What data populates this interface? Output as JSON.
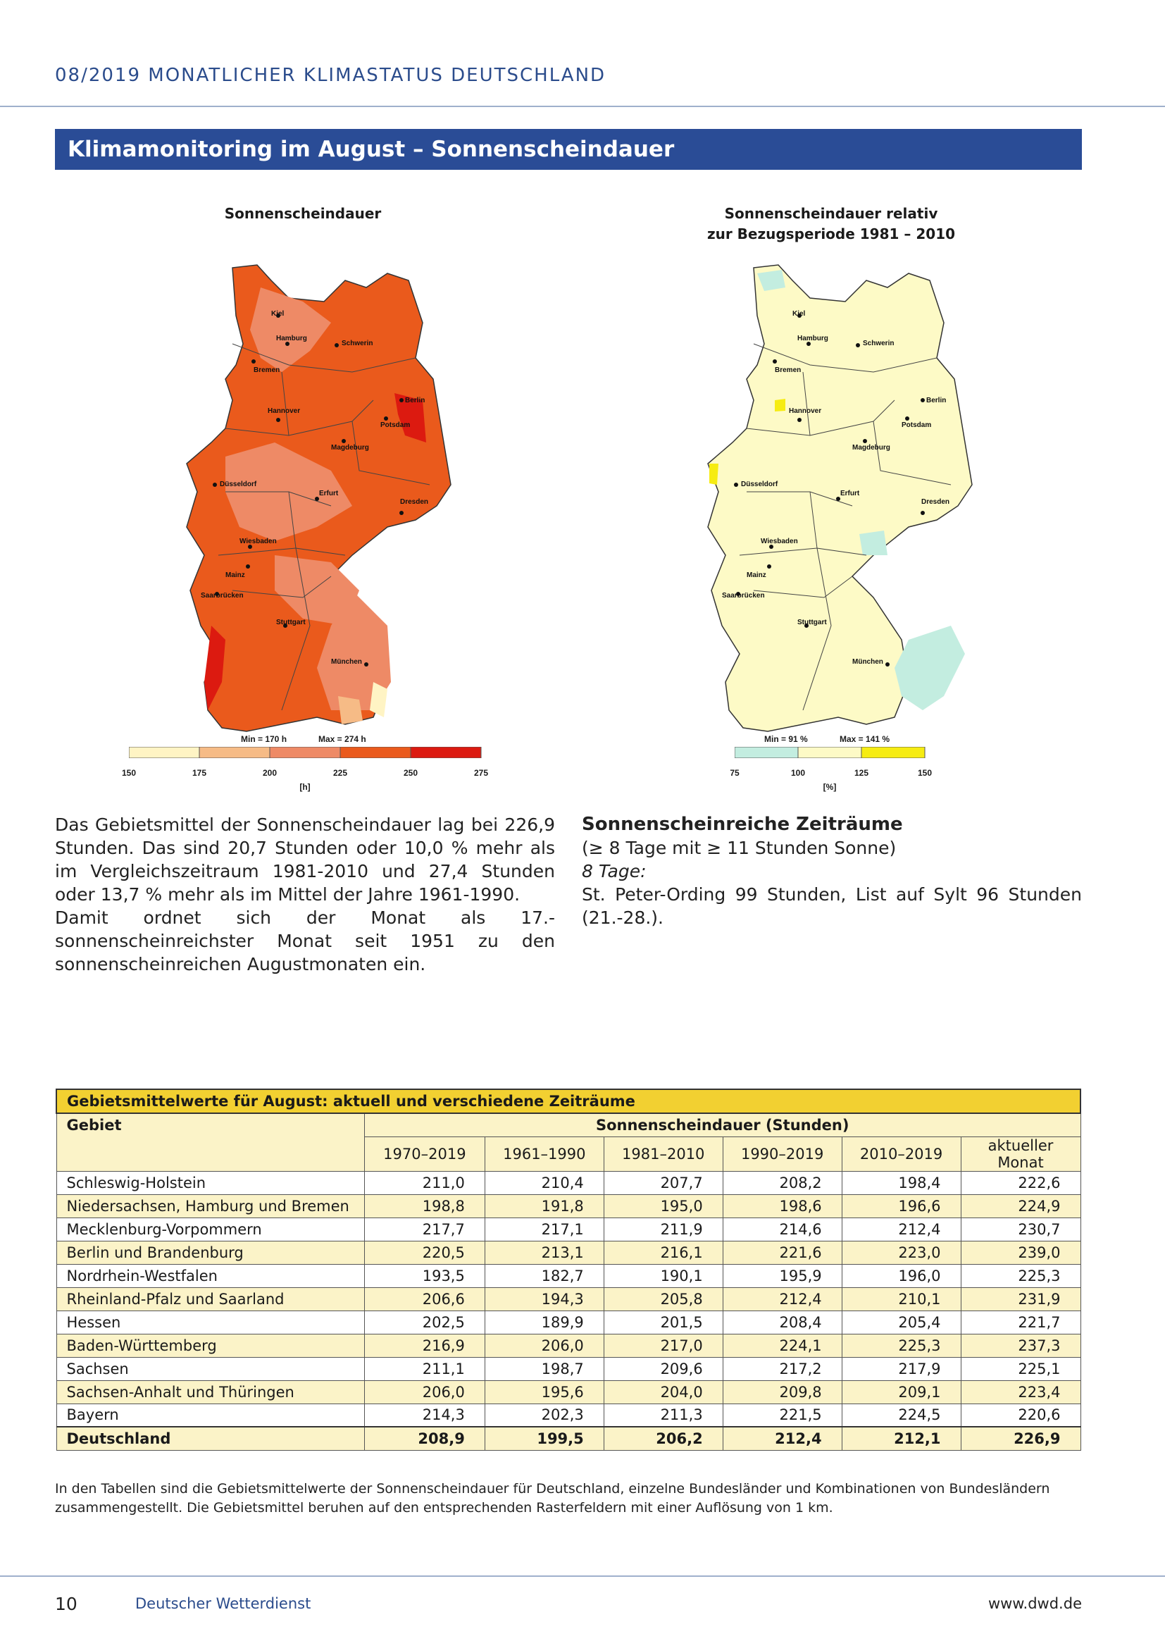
{
  "header": {
    "title": "08/2019  MONATLICHER KLIMASTATUS DEUTSCHLAND"
  },
  "banner": {
    "title": "Klimamonitoring im August – Sonnenscheindauer"
  },
  "map_left": {
    "title": "Sonnenscheindauer",
    "min_label": "Min = 170 h",
    "max_label": "Max = 274 h",
    "scale_ticks": [
      "150",
      "175",
      "200",
      "225",
      "250",
      "275"
    ],
    "unit": "[h]",
    "scale_colors": [
      "#fff4c4",
      "#f6bb86",
      "#ee8a66",
      "#ea5a1c",
      "#dc1a10"
    ],
    "cities": [
      "Kiel",
      "Hamburg",
      "Schwerin",
      "Bremen",
      "Berlin",
      "Hannover",
      "Potsdam",
      "Magdeburg",
      "Düsseldorf",
      "Erfurt",
      "Dresden",
      "Wiesbaden",
      "Mainz",
      "Saarbrücken",
      "Stuttgart",
      "München"
    ]
  },
  "map_right": {
    "title_line1": "Sonnenscheindauer relativ",
    "title_line2": "zur Bezugsperiode 1981 – 2010",
    "min_label": "Min = 91 %",
    "max_label": "Max = 141 %",
    "scale_ticks": [
      "75",
      "100",
      "125",
      "150"
    ],
    "unit": "[%]",
    "scale_colors": [
      "#c3ede0",
      "#fdfac6",
      "#f6ec12"
    ],
    "cities": [
      "Kiel",
      "Hamburg",
      "Schwerin",
      "Bremen",
      "Berlin",
      "Hannover",
      "Potsdam",
      "Magdeburg",
      "Düsseldorf",
      "Erfurt",
      "Dresden",
      "Wiesbaden",
      "Mainz",
      "Saarbrücken",
      "Stuttgart",
      "München"
    ]
  },
  "text_left": {
    "p1": "Das Gebietsmittel der Sonnenscheindauer lag bei 226,9 Stunden. Das sind 20,7 Stunden oder 10,0 % mehr als im Vergleichszeitraum 1981-2010 und 27,4 Stunden oder 13,7 % mehr als im Mittel der Jahre 1961-1990.",
    "p2": "Damit ordnet sich der Monat als 17.-sonnenscheinreichster Monat seit 1951 zu den sonnenscheinreichen Augustmonaten ein."
  },
  "text_right": {
    "heading": "Sonnenscheinreiche Zeiträume",
    "sub": "(≥ 8 Tage mit ≥ 11 Stunden Sonne)",
    "label": "8 Tage:",
    "body": "St. Peter-Ording 99 Stunden, List auf Sylt 96 Stunden (21.-28.)."
  },
  "table": {
    "caption": "Gebietsmittelwerte für August: aktuell und verschiedene Zeiträume",
    "col_gebiet": "Gebiet",
    "col_group": "Sonnenscheindauer (Stunden)",
    "periods": [
      "1970–2019",
      "1961–1990",
      "1981–2010",
      "1990–2019",
      "2010–2019",
      "aktueller Monat"
    ],
    "rows": [
      [
        "Schleswig-Holstein",
        "211,0",
        "210,4",
        "207,7",
        "208,2",
        "198,4",
        "222,6"
      ],
      [
        "Niedersachsen, Hamburg und Bremen",
        "198,8",
        "191,8",
        "195,0",
        "198,6",
        "196,6",
        "224,9"
      ],
      [
        "Mecklenburg-Vorpommern",
        "217,7",
        "217,1",
        "211,9",
        "214,6",
        "212,4",
        "230,7"
      ],
      [
        "Berlin und Brandenburg",
        "220,5",
        "213,1",
        "216,1",
        "221,6",
        "223,0",
        "239,0"
      ],
      [
        "Nordrhein-Westfalen",
        "193,5",
        "182,7",
        "190,1",
        "195,9",
        "196,0",
        "225,3"
      ],
      [
        "Rheinland-Pfalz und Saarland",
        "206,6",
        "194,3",
        "205,8",
        "212,4",
        "210,1",
        "231,9"
      ],
      [
        "Hessen",
        "202,5",
        "189,9",
        "201,5",
        "208,4",
        "205,4",
        "221,7"
      ],
      [
        "Baden-Württemberg",
        "216,9",
        "206,0",
        "217,0",
        "224,1",
        "225,3",
        "237,3"
      ],
      [
        "Sachsen",
        "211,1",
        "198,7",
        "209,6",
        "217,2",
        "217,9",
        "225,1"
      ],
      [
        "Sachsen-Anhalt und Thüringen",
        "206,0",
        "195,6",
        "204,0",
        "209,8",
        "209,1",
        "223,4"
      ],
      [
        "Bayern",
        "214,3",
        "202,3",
        "211,3",
        "221,5",
        "224,5",
        "220,6"
      ]
    ],
    "total": [
      "Deutschland",
      "208,9",
      "199,5",
      "206,2",
      "212,4",
      "212,1",
      "226,9"
    ]
  },
  "footnote": "In den Tabellen sind die Gebietsmittelwerte der Sonnenscheindauer für Deutschland, einzelne Bundesländer und Kombinationen von Bundesländern zusammengestellt. Die Gebietsmittel beruhen auf den entsprechenden Rasterfeldern mit einer Auflösung von 1 km.",
  "footer": {
    "page": "10",
    "publisher": "Deutscher Wetterdienst",
    "url": "www.dwd.de"
  }
}
